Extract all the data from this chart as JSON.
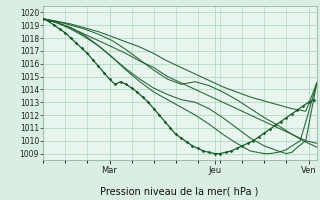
{
  "xlabel": "Pression niveau de la mer( hPa )",
  "bg_color": "#daeee2",
  "plot_bg_color": "#e8f5ee",
  "grid_color": "#aad4b8",
  "line_color": "#1a5c2a",
  "ylim": [
    1008.5,
    1020.5
  ],
  "yticks": [
    1009,
    1010,
    1011,
    1012,
    1013,
    1014,
    1015,
    1016,
    1017,
    1018,
    1019,
    1020
  ],
  "xlim": [
    0,
    99
  ],
  "mer_x": 24,
  "jeu_x": 62,
  "ven_x": 96,
  "lines": [
    {
      "points": [
        [
          0,
          1019.5
        ],
        [
          5,
          1019.2
        ],
        [
          10,
          1018.8
        ],
        [
          15,
          1018.3
        ],
        [
          20,
          1017.8
        ],
        [
          25,
          1017.3
        ],
        [
          30,
          1016.8
        ],
        [
          35,
          1016.2
        ],
        [
          40,
          1015.7
        ],
        [
          45,
          1015.0
        ],
        [
          50,
          1014.5
        ],
        [
          55,
          1014.0
        ],
        [
          60,
          1013.5
        ],
        [
          65,
          1013.0
        ],
        [
          70,
          1012.5
        ],
        [
          75,
          1012.0
        ],
        [
          80,
          1011.5
        ],
        [
          85,
          1011.0
        ],
        [
          90,
          1010.5
        ],
        [
          95,
          1010.0
        ],
        [
          99,
          1009.8
        ]
      ],
      "lw": 0.8
    },
    {
      "points": [
        [
          0,
          1019.5
        ],
        [
          5,
          1019.3
        ],
        [
          10,
          1019.1
        ],
        [
          15,
          1018.8
        ],
        [
          20,
          1018.5
        ],
        [
          25,
          1018.1
        ],
        [
          30,
          1017.7
        ],
        [
          35,
          1017.3
        ],
        [
          40,
          1016.8
        ],
        [
          45,
          1016.2
        ],
        [
          50,
          1015.7
        ],
        [
          55,
          1015.2
        ],
        [
          60,
          1014.7
        ],
        [
          65,
          1014.2
        ],
        [
          70,
          1013.8
        ],
        [
          75,
          1013.4
        ],
        [
          80,
          1013.1
        ],
        [
          85,
          1012.8
        ],
        [
          90,
          1012.5
        ],
        [
          95,
          1012.3
        ],
        [
          99,
          1014.5
        ]
      ],
      "lw": 0.8
    },
    {
      "points": [
        [
          0,
          1019.5
        ],
        [
          5,
          1019.3
        ],
        [
          10,
          1019.0
        ],
        [
          15,
          1018.7
        ],
        [
          20,
          1018.3
        ],
        [
          25,
          1017.8
        ],
        [
          30,
          1017.1
        ],
        [
          35,
          1016.3
        ],
        [
          40,
          1015.5
        ],
        [
          45,
          1014.8
        ],
        [
          50,
          1014.4
        ],
        [
          55,
          1014.6
        ],
        [
          60,
          1014.3
        ],
        [
          65,
          1013.8
        ],
        [
          70,
          1013.2
        ],
        [
          75,
          1012.5
        ],
        [
          80,
          1011.8
        ],
        [
          85,
          1011.2
        ],
        [
          90,
          1010.5
        ],
        [
          95,
          1009.9
        ],
        [
          99,
          1009.5
        ]
      ],
      "lw": 0.8
    },
    {
      "points": [
        [
          0,
          1019.5
        ],
        [
          5,
          1019.2
        ],
        [
          10,
          1018.7
        ],
        [
          15,
          1018.1
        ],
        [
          20,
          1017.4
        ],
        [
          25,
          1016.5
        ],
        [
          30,
          1015.6
        ],
        [
          35,
          1014.8
        ],
        [
          40,
          1014.1
        ],
        [
          45,
          1013.6
        ],
        [
          50,
          1013.2
        ],
        [
          55,
          1013.0
        ],
        [
          60,
          1012.5
        ],
        [
          65,
          1011.8
        ],
        [
          70,
          1011.0
        ],
        [
          75,
          1010.2
        ],
        [
          80,
          1009.6
        ],
        [
          85,
          1009.2
        ],
        [
          88,
          1009.0
        ],
        [
          90,
          1009.1
        ],
        [
          92,
          1009.5
        ],
        [
          95,
          1010.0
        ],
        [
          99,
          1014.5
        ]
      ],
      "lw": 0.8
    },
    {
      "points": [
        [
          0,
          1019.5
        ],
        [
          5,
          1019.2
        ],
        [
          10,
          1018.8
        ],
        [
          15,
          1018.2
        ],
        [
          20,
          1017.4
        ],
        [
          25,
          1016.5
        ],
        [
          30,
          1015.5
        ],
        [
          35,
          1014.6
        ],
        [
          40,
          1013.8
        ],
        [
          45,
          1013.2
        ],
        [
          50,
          1012.6
        ],
        [
          55,
          1012.0
        ],
        [
          60,
          1011.3
        ],
        [
          65,
          1010.5
        ],
        [
          70,
          1009.8
        ],
        [
          75,
          1009.2
        ],
        [
          80,
          1009.0
        ],
        [
          82,
          1009.0
        ],
        [
          85,
          1009.1
        ],
        [
          88,
          1009.3
        ],
        [
          90,
          1009.6
        ],
        [
          93,
          1010.0
        ],
        [
          96,
          1012.2
        ],
        [
          99,
          1014.5
        ]
      ],
      "lw": 0.8
    }
  ],
  "marker_line": {
    "points": [
      [
        0,
        1019.5
      ],
      [
        2,
        1019.3
      ],
      [
        4,
        1019.0
      ],
      [
        6,
        1018.7
      ],
      [
        8,
        1018.4
      ],
      [
        10,
        1018.0
      ],
      [
        12,
        1017.6
      ],
      [
        14,
        1017.2
      ],
      [
        16,
        1016.8
      ],
      [
        18,
        1016.3
      ],
      [
        20,
        1015.8
      ],
      [
        22,
        1015.3
      ],
      [
        24,
        1014.8
      ],
      [
        26,
        1014.4
      ],
      [
        28,
        1014.6
      ],
      [
        30,
        1014.4
      ],
      [
        32,
        1014.1
      ],
      [
        34,
        1013.8
      ],
      [
        36,
        1013.4
      ],
      [
        38,
        1013.0
      ],
      [
        40,
        1012.5
      ],
      [
        42,
        1012.0
      ],
      [
        44,
        1011.5
      ],
      [
        46,
        1011.0
      ],
      [
        48,
        1010.5
      ],
      [
        50,
        1010.2
      ],
      [
        52,
        1009.9
      ],
      [
        54,
        1009.6
      ],
      [
        56,
        1009.4
      ],
      [
        58,
        1009.2
      ],
      [
        60,
        1009.1
      ],
      [
        62,
        1009.0
      ],
      [
        64,
        1009.0
      ],
      [
        66,
        1009.1
      ],
      [
        68,
        1009.2
      ],
      [
        70,
        1009.4
      ],
      [
        72,
        1009.6
      ],
      [
        74,
        1009.8
      ],
      [
        76,
        1010.0
      ],
      [
        78,
        1010.3
      ],
      [
        80,
        1010.6
      ],
      [
        82,
        1010.9
      ],
      [
        84,
        1011.2
      ],
      [
        86,
        1011.5
      ],
      [
        88,
        1011.8
      ],
      [
        90,
        1012.1
      ],
      [
        92,
        1012.4
      ],
      [
        94,
        1012.7
      ],
      [
        96,
        1013.0
      ],
      [
        98,
        1013.2
      ]
    ],
    "lw": 0.9
  }
}
